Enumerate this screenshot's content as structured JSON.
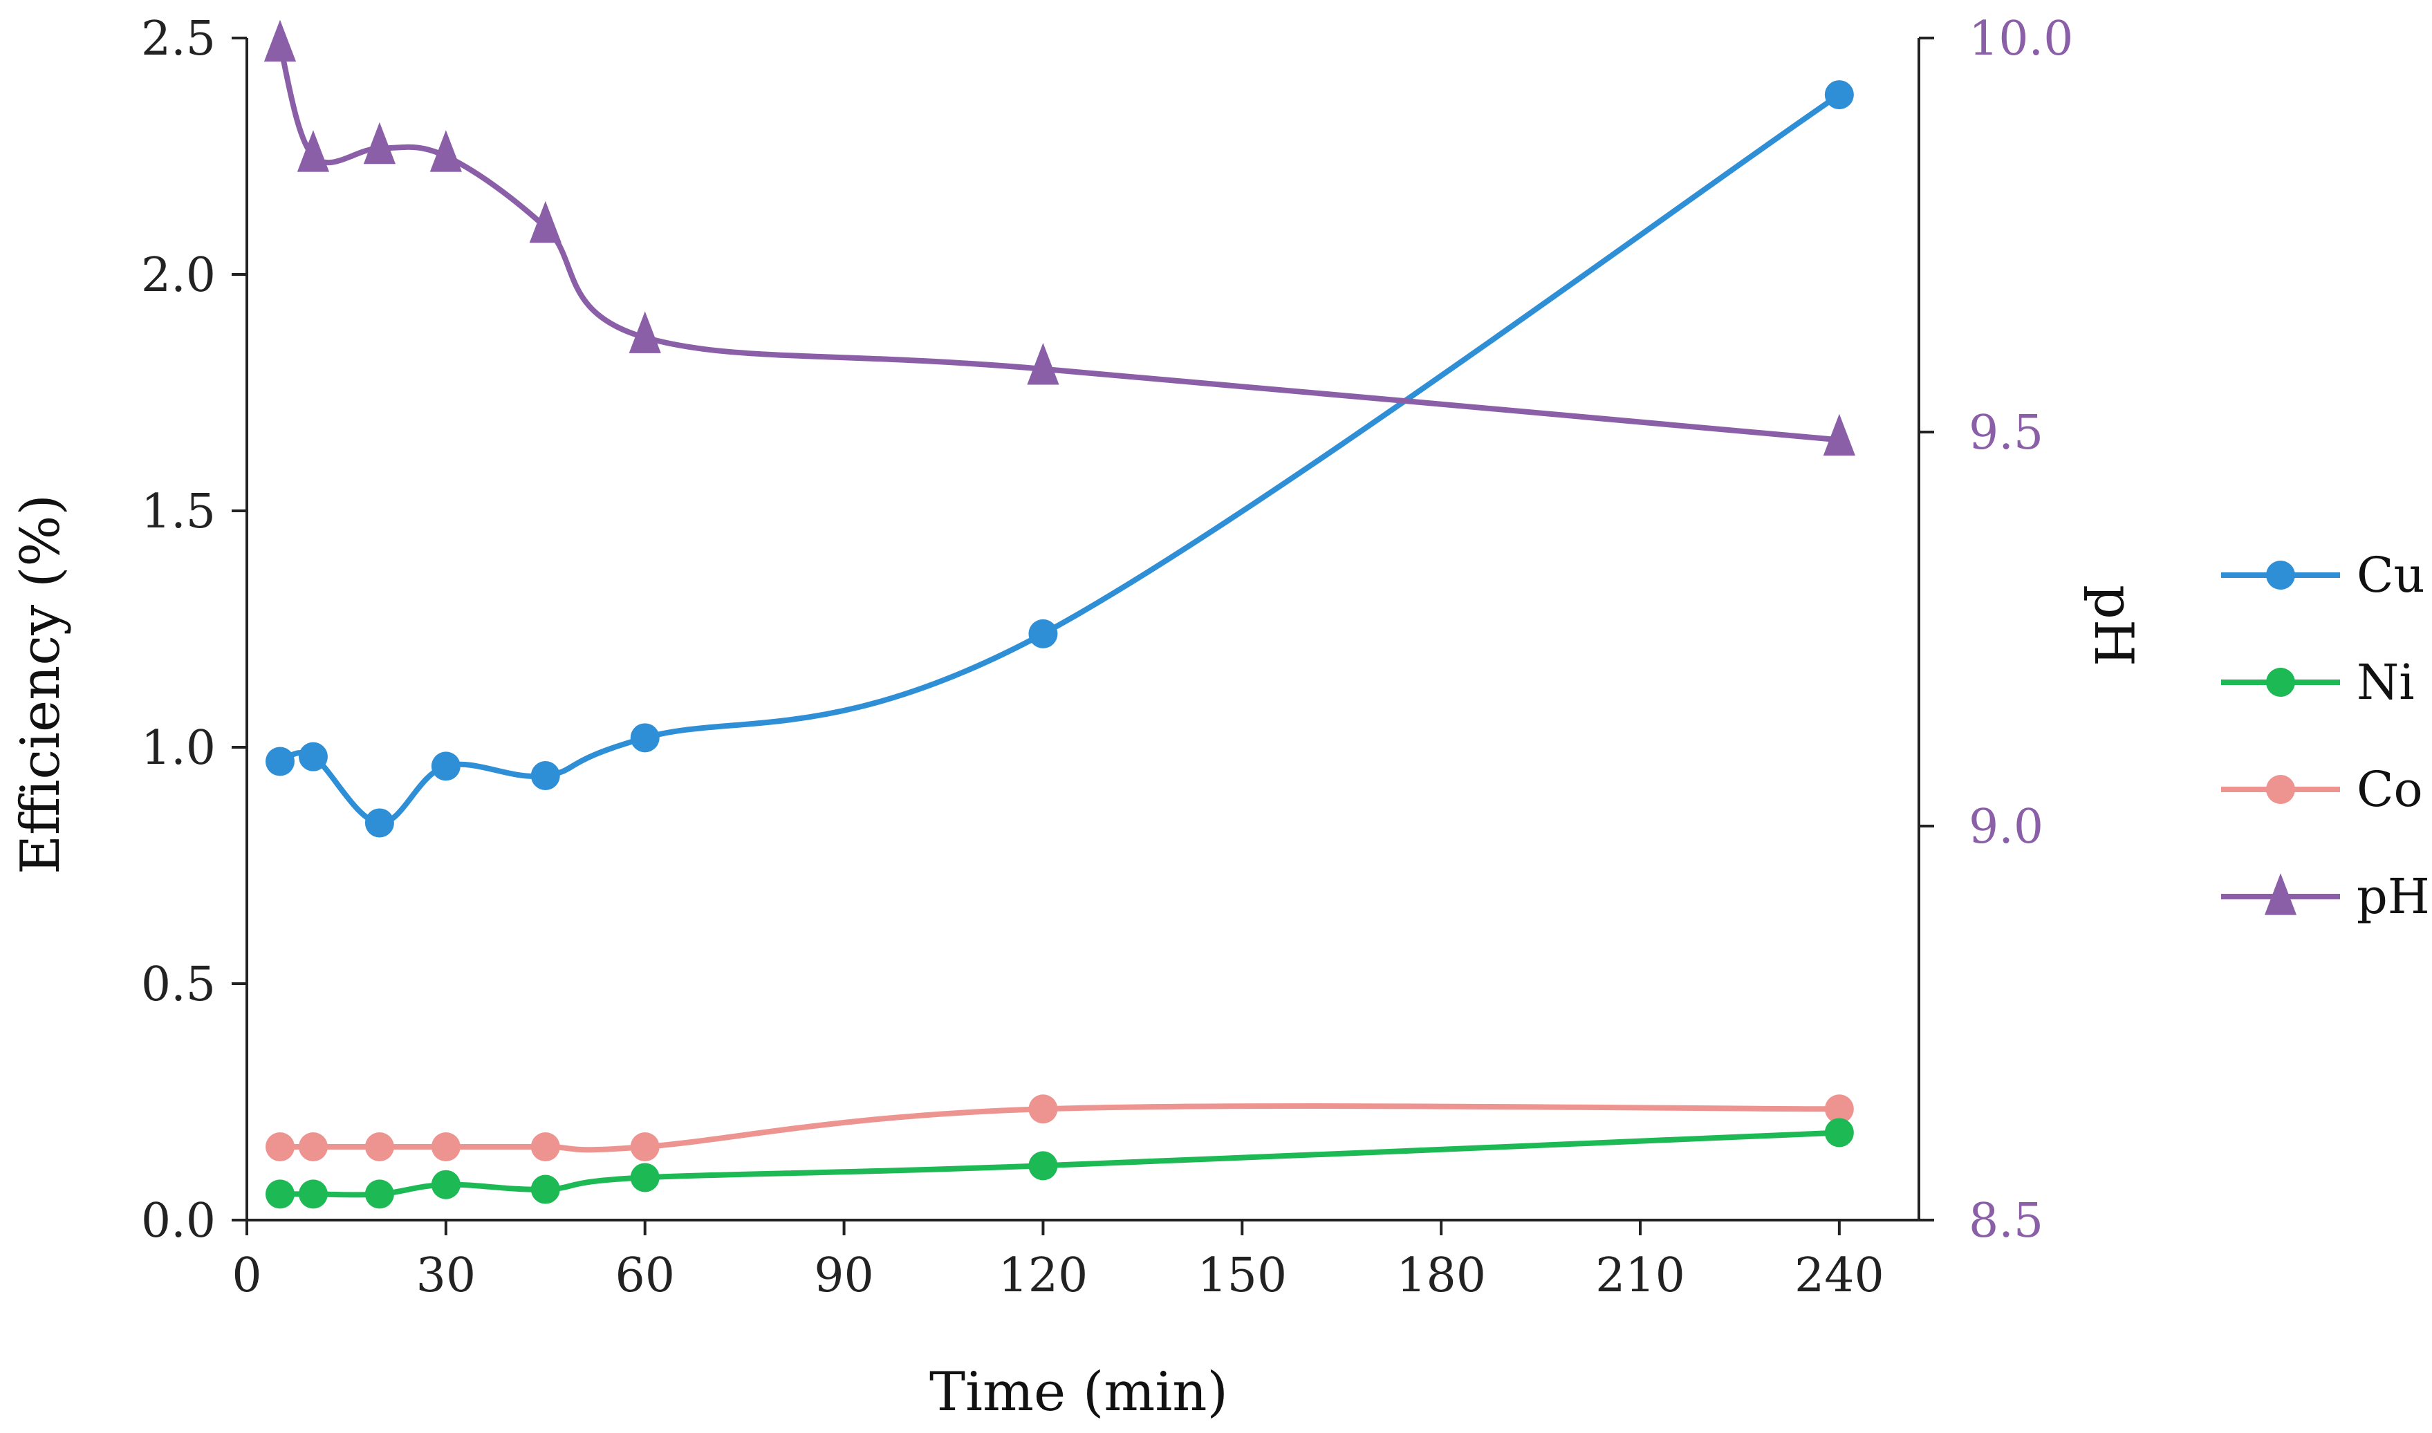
{
  "chart_data": {
    "type": "line",
    "title": "",
    "xlabel": "Time (min)",
    "ylabel": "Efficiency (%)",
    "y2label": "pH",
    "xlim": [
      0,
      252
    ],
    "ylim": [
      0,
      2.5
    ],
    "y2lim": [
      8.5,
      10.0
    ],
    "x_ticks": [
      0,
      30,
      60,
      90,
      120,
      150,
      180,
      210,
      240
    ],
    "y_ticks": [
      0.0,
      0.5,
      1.0,
      1.5,
      2.0,
      2.5
    ],
    "y2_ticks": [
      8.5,
      9.0,
      9.5,
      10.0
    ],
    "x_tick_labels": [
      "0",
      "30",
      "60",
      "90",
      "120",
      "150",
      "180",
      "210",
      "240"
    ],
    "y_tick_labels": [
      "0.0",
      "0.5",
      "1.0",
      "1.5",
      "2.0",
      "2.5"
    ],
    "y2_tick_labels": [
      "8.5",
      "9.0",
      "9.5",
      "10.0"
    ],
    "x": [
      5,
      10,
      20,
      30,
      45,
      60,
      120,
      240
    ],
    "grid": false,
    "legend_position": "right",
    "series": [
      {
        "name": "Cu",
        "axis": "left",
        "marker": "circle",
        "color": "#2E8FD6",
        "values": [
          0.97,
          0.98,
          0.84,
          0.96,
          0.94,
          1.02,
          1.24,
          2.38
        ]
      },
      {
        "name": "Ni",
        "axis": "left",
        "marker": "circle",
        "color": "#1DB954",
        "values": [
          0.055,
          0.055,
          0.055,
          0.075,
          0.065,
          0.09,
          0.115,
          0.185
        ]
      },
      {
        "name": "Co",
        "axis": "left",
        "marker": "circle",
        "color": "#EE9490",
        "values": [
          0.155,
          0.155,
          0.155,
          0.155,
          0.155,
          0.155,
          0.235,
          0.235
        ]
      },
      {
        "name": "pH",
        "axis": "right",
        "marker": "triangle",
        "color": "#8A5FA8",
        "values": [
          9.99,
          9.85,
          9.86,
          9.85,
          9.76,
          9.62,
          9.58,
          9.49
        ]
      }
    ]
  },
  "colors": {
    "axis": "#222222",
    "right_axis": "#8A5FA8"
  }
}
